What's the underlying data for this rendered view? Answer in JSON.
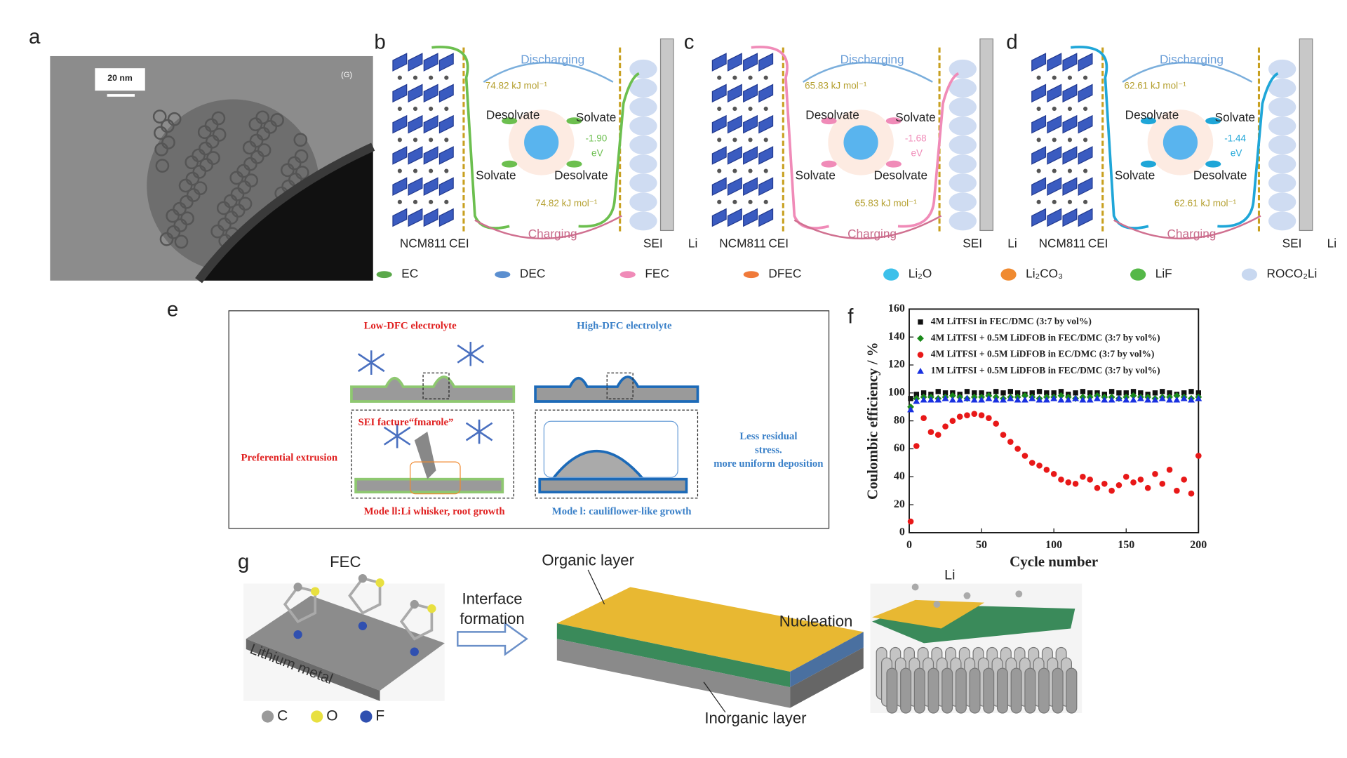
{
  "panel_labels": [
    "a",
    "b",
    "c",
    "d",
    "e",
    "f",
    "g"
  ],
  "panel_a": {
    "scale_bar": "20 nm",
    "corner_label": "(G)"
  },
  "schemes": [
    {
      "discharging": "Discharging",
      "charging": "Charging",
      "energy_top": "74.82 kJ mol⁻¹",
      "energy_bottom": "74.82 kJ mol⁻¹",
      "desolvate_top": "Desolvate",
      "solvate_top": "Solvate",
      "solvate_bottom": "Solvate",
      "desolvate_bottom": "Desolvate",
      "binding": "-1.90",
      "binding_unit": "eV",
      "cathode": "NCM811",
      "cei": "CEI",
      "sei": "SEI",
      "anode": "Li",
      "curve_color": "#6cbf4f"
    },
    {
      "discharging": "Discharging",
      "charging": "Charging",
      "energy_top": "65.83 kJ mol⁻¹",
      "energy_bottom": "65.83 kJ mol⁻¹",
      "desolvate_top": "Desolvate",
      "solvate_top": "Solvate",
      "solvate_bottom": "Solvate",
      "desolvate_bottom": "Desolvate",
      "binding": "-1.68",
      "binding_unit": "eV",
      "cathode": "NCM811",
      "cei": "CEI",
      "sei": "SEI",
      "anode": "Li",
      "curve_color": "#f08bb8"
    },
    {
      "discharging": "Discharging",
      "charging": "Charging",
      "energy_top": "62.61 kJ mol⁻¹",
      "energy_bottom": "62.61 kJ mol⁻¹",
      "desolvate_top": "Desolvate",
      "solvate_top": "Solvate",
      "solvate_bottom": "Solvate",
      "desolvate_bottom": "Desolvate",
      "binding": "-1.44",
      "binding_unit": "eV",
      "cathode": "NCM811",
      "cei": "CEI",
      "sei": "SEI",
      "anode": "Li",
      "curve_color": "#1fa6d8"
    }
  ],
  "legend": [
    {
      "label": "EC",
      "color": "#5aa84a"
    },
    {
      "label": "DEC",
      "color": "#5b8fd0"
    },
    {
      "label": "FEC",
      "color": "#f08bb8"
    },
    {
      "label": "DFEC",
      "color": "#f07a3a"
    },
    {
      "label": "Li₂O",
      "color": "#3cc0ea"
    },
    {
      "label": "Li₂CO₃",
      "color": "#f08a30"
    },
    {
      "label": "LiF",
      "color": "#55b848"
    },
    {
      "label": "ROCO₂Li",
      "color": "#c8d8f0"
    }
  ],
  "panel_e": {
    "low": "Low-DFC electrolyte",
    "high": "High-DFC electrolyte",
    "fracture": "SEI facture“fmarole”",
    "extrusion": "Preferential extrusion",
    "mode2": "Mode ll:Li whisker, root growth",
    "stress_lines": [
      "Less residual",
      "stress.",
      "more uniform deposition"
    ],
    "mode1": "Mode l: cauliflower-like growth"
  },
  "panel_g": {
    "fec": "FEC",
    "substrate": "Lithium metal",
    "atoms": [
      {
        "label": "C",
        "color": "#9a9a9a"
      },
      {
        "label": "O",
        "color": "#e8e040"
      },
      {
        "label": "F",
        "color": "#3050b0"
      }
    ],
    "step1_lines": [
      "Interface",
      "formation"
    ],
    "organic": "Organic layer",
    "inorganic": "Inorganic layer",
    "step2": "Nucleation",
    "li": "Li"
  },
  "chart_data": {
    "type": "scatter",
    "xlabel": "Cycle number",
    "ylabel": "Coulombic efficiency / %",
    "xlim": [
      0,
      200
    ],
    "xticks": [
      0,
      50,
      100,
      150,
      200
    ],
    "ylim": [
      0,
      160
    ],
    "yticks": [
      0,
      20,
      40,
      60,
      80,
      100,
      120,
      140,
      160
    ],
    "x": [
      1,
      5,
      10,
      15,
      20,
      25,
      30,
      35,
      40,
      45,
      50,
      55,
      60,
      65,
      70,
      75,
      80,
      85,
      90,
      95,
      100,
      105,
      110,
      115,
      120,
      125,
      130,
      135,
      140,
      145,
      150,
      155,
      160,
      165,
      170,
      175,
      180,
      185,
      190,
      195,
      200
    ],
    "series": [
      {
        "name": "4M LiTFSI in FEC/DMC (3:7 by vol%)",
        "color": "#111111",
        "marker": "square",
        "values": [
          96,
          99,
          100,
          99,
          101,
          100,
          100,
          99,
          101,
          100,
          100,
          99,
          101,
          100,
          101,
          100,
          99,
          100,
          101,
          100,
          100,
          101,
          99,
          100,
          101,
          100,
          100,
          99,
          101,
          100,
          100,
          101,
          100,
          99,
          100,
          101,
          100,
          99,
          100,
          101,
          100
        ]
      },
      {
        "name": "4M LiTFSI + 0.5M LiDFOB in FEC/DMC (3:7 by vol%)",
        "color": "#1a8a1a",
        "marker": "diamond",
        "values": [
          90,
          96,
          97,
          97,
          96,
          97,
          98,
          97,
          96,
          97,
          97,
          98,
          97,
          96,
          97,
          97,
          98,
          97,
          96,
          97,
          97,
          98,
          97,
          96,
          97,
          97,
          98,
          97,
          97,
          96,
          97,
          98,
          97,
          97,
          96,
          97,
          97,
          98,
          97,
          96,
          97
        ]
      },
      {
        "name": "4M LiTFSI + 0.5M LiDFOB in EC/DMC (3:7 by vol%)",
        "color": "#e81818",
        "marker": "circle",
        "values": [
          8,
          62,
          82,
          72,
          70,
          76,
          80,
          83,
          84,
          85,
          84,
          82,
          78,
          70,
          65,
          60,
          55,
          50,
          48,
          45,
          42,
          38,
          36,
          35,
          40,
          38,
          32,
          35,
          30,
          34,
          40,
          36,
          38,
          32,
          42,
          35,
          45,
          30,
          38,
          28,
          55
        ]
      },
      {
        "name": "1M LiTFSI + 0.5M LiDFOB in FEC/DMC (3:7 by vol%)",
        "color": "#1830e0",
        "marker": "triangle",
        "values": [
          88,
          94,
          95,
          95,
          95,
          96,
          95,
          95,
          96,
          95,
          95,
          96,
          95,
          95,
          96,
          95,
          95,
          96,
          95,
          95,
          96,
          95,
          95,
          96,
          95,
          95,
          96,
          95,
          95,
          96,
          95,
          95,
          96,
          95,
          95,
          96,
          95,
          95,
          96,
          95,
          96
        ]
      }
    ]
  }
}
